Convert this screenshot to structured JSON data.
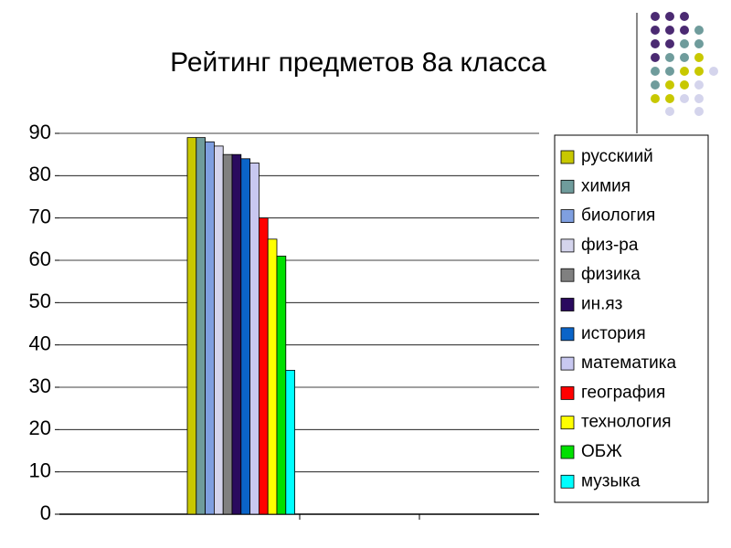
{
  "chart_data": {
    "type": "bar",
    "title": "Рейтинг предметов 8а класса",
    "categories": [
      null
    ],
    "series": [
      {
        "name": "русскиий",
        "color": "#c8c800",
        "values": [
          89
        ]
      },
      {
        "name": "химия",
        "color": "#6f9c9c",
        "values": [
          89
        ]
      },
      {
        "name": "биология",
        "color": "#7f9fe0",
        "values": [
          88
        ]
      },
      {
        "name": "физ-ра",
        "color": "#d4d4ec",
        "values": [
          87
        ]
      },
      {
        "name": "физика",
        "color": "#808080",
        "values": [
          85
        ]
      },
      {
        "name": "ин.яз",
        "color": "#2a0a5e",
        "values": [
          85
        ]
      },
      {
        "name": "история",
        "color": "#0a64c8",
        "values": [
          84
        ]
      },
      {
        "name": "математика",
        "color": "#c8c8f0",
        "values": [
          83
        ]
      },
      {
        "name": "география",
        "color": "#ff0000",
        "values": [
          70
        ]
      },
      {
        "name": "технология",
        "color": "#ffff00",
        "values": [
          65
        ]
      },
      {
        "name": "ОБЖ",
        "color": "#00e000",
        "values": [
          61
        ]
      },
      {
        "name": "музыка",
        "color": "#00ffff",
        "values": [
          34
        ]
      }
    ],
    "ylim": [
      0,
      90
    ],
    "yticks": [
      0,
      10,
      20,
      30,
      40,
      50,
      60,
      70,
      80,
      90
    ],
    "grid": true,
    "legend": "right"
  }
}
